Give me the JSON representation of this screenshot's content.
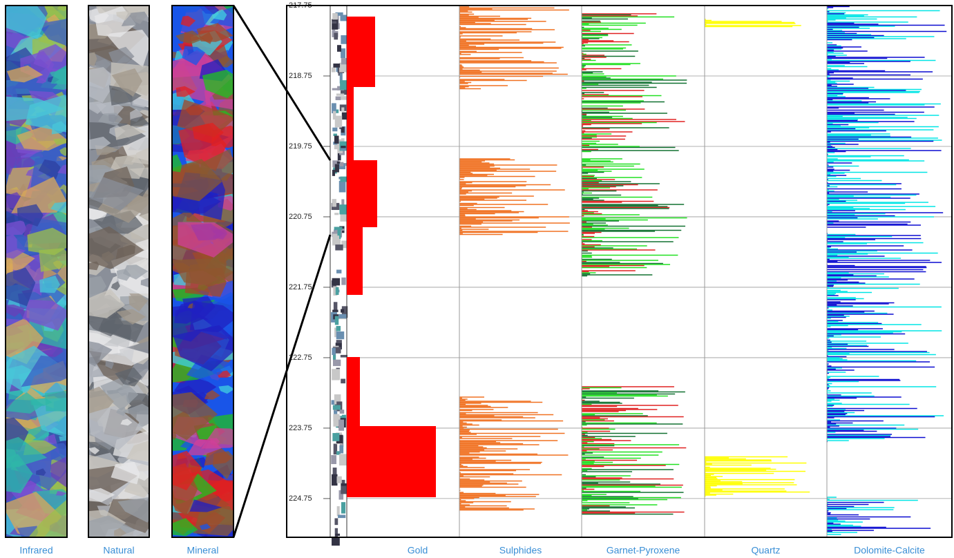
{
  "images": [
    "Infrared",
    "Natural",
    "Mineral"
  ],
  "log": {
    "depth_range": [
      217.75,
      225.3
    ],
    "depth_ticks": [
      217.75,
      218.75,
      219.75,
      220.75,
      221.75,
      222.75,
      223.75,
      224.75
    ],
    "tracks": [
      "Gold",
      "Sulphides",
      "Garnet-Pyroxene",
      "Quartz",
      "Dolomite-Calcite"
    ]
  }
}
